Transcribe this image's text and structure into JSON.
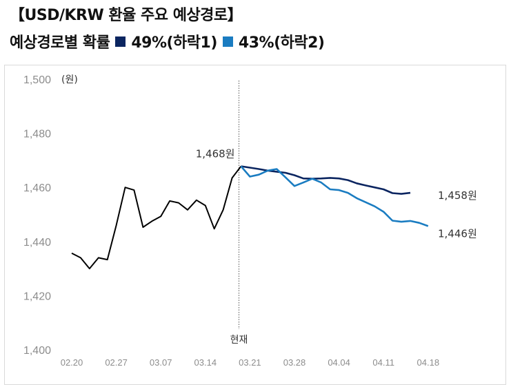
{
  "title": "【USD/KRW 환율 주요 예상경로】",
  "legend_prefix": "예상경로별 확률",
  "colors": {
    "series1": "#0b2560",
    "series2": "#1a7cc1",
    "hist": "#000000",
    "frame": "#d9d9d9",
    "tick": "#8c8c8c"
  },
  "chart_data": {
    "type": "line",
    "ylabel": "(원)",
    "ylim": [
      1400,
      1500
    ],
    "yticks": [
      "1,400",
      "1,420",
      "1,440",
      "1,460",
      "1,480",
      "1,500"
    ],
    "xticks": [
      "02.20",
      "02.27",
      "03.07",
      "03.14",
      "03.21",
      "03.28",
      "04.04",
      "04.11",
      "04.18"
    ],
    "xtick_index": [
      0,
      5,
      10,
      15,
      20,
      25,
      30,
      35,
      40
    ],
    "now_label": "현재",
    "now_index": 19,
    "annotations": {
      "now_value": "1,468원",
      "end1": "1,458원",
      "end2": "1,446원"
    },
    "series": [
      {
        "values": [
          1435.7,
          1434,
          1430,
          1434,
          1433.3,
          1446,
          1460,
          1459,
          1445.3,
          1447.5,
          1449.3,
          1455,
          1454.3,
          1451.7,
          1455.3,
          1453.3,
          1444.7,
          1451.7,
          1463.5,
          1467.8
        ],
        "offset": 0
      },
      {
        "name": "49%(하락1)",
        "values": [
          1467.8,
          1467.3,
          1466.8,
          1466.2,
          1465.8,
          1465.4,
          1464.5,
          1463.3,
          1463.2,
          1463.3,
          1463.5,
          1463.3,
          1462.7,
          1461.5,
          1460.7,
          1460,
          1459.3,
          1457.9,
          1457.6,
          1458
        ],
        "offset": 19
      },
      {
        "name": "43%(하락2)",
        "values": [
          1467.8,
          1464,
          1464.7,
          1466.2,
          1466.8,
          1463.7,
          1460.5,
          1461.8,
          1463.2,
          1461.8,
          1459.3,
          1459,
          1458,
          1456,
          1454.5,
          1453,
          1451,
          1447.7,
          1447.3,
          1447.6,
          1446.9,
          1445.7
        ],
        "offset": 19
      }
    ]
  }
}
